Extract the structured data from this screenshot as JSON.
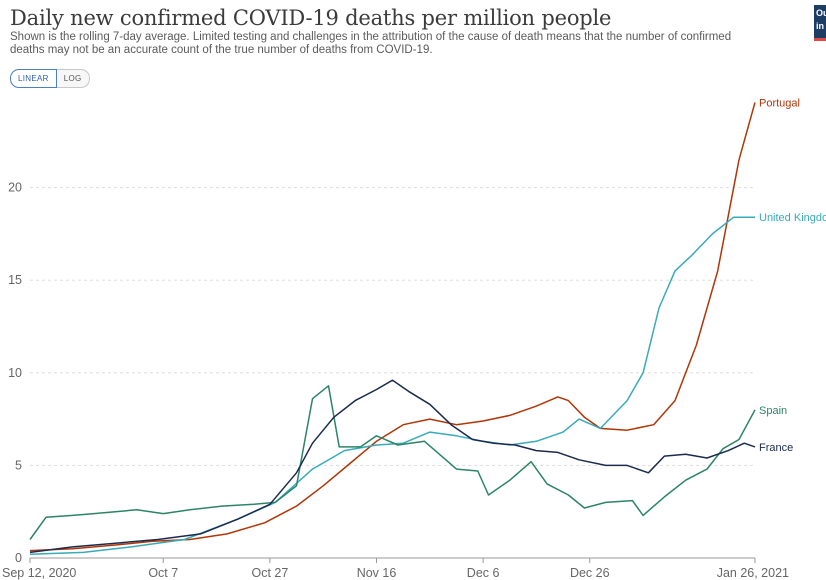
{
  "header": {
    "title": "Daily new confirmed COVID-19 deaths per million people",
    "subtitle": "Shown is the rolling 7-day average. Limited testing and challenges in the attribution of the cause of death means that the number of confirmed deaths may not be an accurate count of the true number of deaths from COVID-19."
  },
  "controls": {
    "linear_label": "LINEAR",
    "log_label": "LOG",
    "active": "LINEAR"
  },
  "logo": {
    "line1": "Ou",
    "line2": "in",
    "color": "#1d3d63"
  },
  "chart_data": {
    "type": "line",
    "title": "Daily new confirmed COVID-19 deaths per million people",
    "x_start": "2020-09-12",
    "x_end": "2021-01-26",
    "x_ticks": [
      {
        "label": "Sep 12, 2020",
        "date": "2020-09-12"
      },
      {
        "label": "Oct 7",
        "date": "2020-10-07"
      },
      {
        "label": "Oct 27",
        "date": "2020-10-27"
      },
      {
        "label": "Nov 16",
        "date": "2020-11-16"
      },
      {
        "label": "Dec 6",
        "date": "2020-12-06"
      },
      {
        "label": "Dec 26",
        "date": "2020-12-26"
      },
      {
        "label": "Jan 26, 2021",
        "date": "2021-01-26"
      }
    ],
    "y_ticks": [
      0,
      5,
      10,
      15,
      20
    ],
    "ylim": [
      0,
      25
    ],
    "grid": true,
    "legend": "line-end labels",
    "series": [
      {
        "name": "Portugal",
        "color": "#b13507",
        "points": [
          [
            "2020-09-12",
            0.4
          ],
          [
            "2020-09-20",
            0.5
          ],
          [
            "2020-09-28",
            0.7
          ],
          [
            "2020-10-05",
            0.9
          ],
          [
            "2020-10-12",
            1.0
          ],
          [
            "2020-10-19",
            1.3
          ],
          [
            "2020-10-26",
            1.9
          ],
          [
            "2020-11-01",
            2.8
          ],
          [
            "2020-11-06",
            3.9
          ],
          [
            "2020-11-11",
            5.1
          ],
          [
            "2020-11-16",
            6.3
          ],
          [
            "2020-11-21",
            7.2
          ],
          [
            "2020-11-26",
            7.5
          ],
          [
            "2020-12-01",
            7.2
          ],
          [
            "2020-12-06",
            7.4
          ],
          [
            "2020-12-11",
            7.7
          ],
          [
            "2020-12-16",
            8.2
          ],
          [
            "2020-12-20",
            8.7
          ],
          [
            "2020-12-22",
            8.5
          ],
          [
            "2020-12-25",
            7.6
          ],
          [
            "2020-12-28",
            7.0
          ],
          [
            "2021-01-02",
            6.9
          ],
          [
            "2021-01-07",
            7.2
          ],
          [
            "2021-01-11",
            8.5
          ],
          [
            "2021-01-15",
            11.5
          ],
          [
            "2021-01-19",
            15.5
          ],
          [
            "2021-01-23",
            21.5
          ],
          [
            "2021-01-26",
            24.6
          ]
        ]
      },
      {
        "name": "United Kingdom",
        "color": "#38aaba",
        "points": [
          [
            "2020-09-12",
            0.2
          ],
          [
            "2020-09-22",
            0.3
          ],
          [
            "2020-10-01",
            0.6
          ],
          [
            "2020-10-11",
            1.0
          ],
          [
            "2020-10-21",
            2.1
          ],
          [
            "2020-10-28",
            3.0
          ],
          [
            "2020-11-04",
            4.8
          ],
          [
            "2020-11-10",
            5.8
          ],
          [
            "2020-11-16",
            6.1
          ],
          [
            "2020-11-21",
            6.2
          ],
          [
            "2020-11-26",
            6.8
          ],
          [
            "2020-12-01",
            6.6
          ],
          [
            "2020-12-06",
            6.3
          ],
          [
            "2020-12-11",
            6.1
          ],
          [
            "2020-12-16",
            6.3
          ],
          [
            "2020-12-21",
            6.8
          ],
          [
            "2020-12-24",
            7.5
          ],
          [
            "2020-12-28",
            7.0
          ],
          [
            "2021-01-02",
            8.5
          ],
          [
            "2021-01-05",
            10.0
          ],
          [
            "2021-01-08",
            13.5
          ],
          [
            "2021-01-11",
            15.5
          ],
          [
            "2021-01-14",
            16.3
          ],
          [
            "2021-01-18",
            17.5
          ],
          [
            "2021-01-22",
            18.4
          ],
          [
            "2021-01-26",
            18.4
          ]
        ]
      },
      {
        "name": "Spain",
        "color": "#2c8465",
        "points": [
          [
            "2020-09-12",
            1.0
          ],
          [
            "2020-09-15",
            2.2
          ],
          [
            "2020-09-20",
            2.3
          ],
          [
            "2020-09-24",
            2.4
          ],
          [
            "2020-09-28",
            2.5
          ],
          [
            "2020-10-02",
            2.6
          ],
          [
            "2020-10-07",
            2.4
          ],
          [
            "2020-10-12",
            2.6
          ],
          [
            "2020-10-18",
            2.8
          ],
          [
            "2020-10-24",
            2.9
          ],
          [
            "2020-10-28",
            3.0
          ],
          [
            "2020-11-01",
            3.9
          ],
          [
            "2020-11-04",
            8.6
          ],
          [
            "2020-11-07",
            9.3
          ],
          [
            "2020-11-09",
            6.0
          ],
          [
            "2020-11-13",
            6.0
          ],
          [
            "2020-11-16",
            6.6
          ],
          [
            "2020-11-20",
            6.1
          ],
          [
            "2020-11-25",
            6.3
          ],
          [
            "2020-12-01",
            4.8
          ],
          [
            "2020-12-05",
            4.7
          ],
          [
            "2020-12-07",
            3.4
          ],
          [
            "2020-12-11",
            4.2
          ],
          [
            "2020-12-15",
            5.2
          ],
          [
            "2020-12-18",
            4.0
          ],
          [
            "2020-12-22",
            3.4
          ],
          [
            "2020-12-25",
            2.7
          ],
          [
            "2020-12-29",
            3.0
          ],
          [
            "2021-01-03",
            3.1
          ],
          [
            "2021-01-05",
            2.3
          ],
          [
            "2021-01-09",
            3.3
          ],
          [
            "2021-01-13",
            4.2
          ],
          [
            "2021-01-17",
            4.8
          ],
          [
            "2021-01-20",
            5.9
          ],
          [
            "2021-01-23",
            6.4
          ],
          [
            "2021-01-26",
            8.0
          ]
        ]
      },
      {
        "name": "France",
        "color": "#1b2a4e",
        "points": [
          [
            "2020-09-12",
            0.3
          ],
          [
            "2020-09-20",
            0.6
          ],
          [
            "2020-09-28",
            0.8
          ],
          [
            "2020-10-06",
            1.0
          ],
          [
            "2020-10-14",
            1.3
          ],
          [
            "2020-10-21",
            2.1
          ],
          [
            "2020-10-27",
            2.9
          ],
          [
            "2020-11-01",
            4.6
          ],
          [
            "2020-11-04",
            6.2
          ],
          [
            "2020-11-08",
            7.6
          ],
          [
            "2020-11-12",
            8.5
          ],
          [
            "2020-11-16",
            9.1
          ],
          [
            "2020-11-19",
            9.6
          ],
          [
            "2020-11-22",
            9.0
          ],
          [
            "2020-11-26",
            8.3
          ],
          [
            "2020-11-30",
            7.2
          ],
          [
            "2020-12-04",
            6.4
          ],
          [
            "2020-12-08",
            6.2
          ],
          [
            "2020-12-12",
            6.1
          ],
          [
            "2020-12-16",
            5.8
          ],
          [
            "2020-12-20",
            5.7
          ],
          [
            "2020-12-24",
            5.3
          ],
          [
            "2020-12-29",
            5.0
          ],
          [
            "2021-01-02",
            5.0
          ],
          [
            "2021-01-06",
            4.6
          ],
          [
            "2021-01-09",
            5.5
          ],
          [
            "2021-01-13",
            5.6
          ],
          [
            "2021-01-17",
            5.4
          ],
          [
            "2021-01-21",
            5.8
          ],
          [
            "2021-01-24",
            6.2
          ],
          [
            "2021-01-26",
            6.0
          ]
        ]
      }
    ]
  }
}
